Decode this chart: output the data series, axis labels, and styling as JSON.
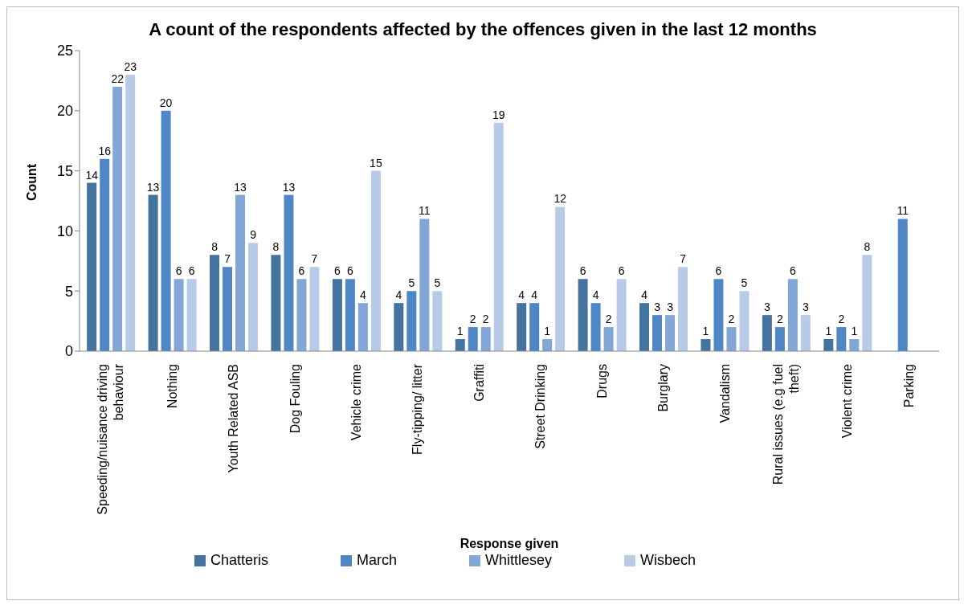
{
  "chart_data": {
    "type": "bar",
    "title": "A count of the respondents affected by the offences given in the last 12 months",
    "xlabel": "Response given",
    "ylabel": "Count",
    "categories": [
      "Speeding/nuisance driving behaviour",
      "Nothing",
      "Youth Related ASB",
      "Dog Fouling",
      "Vehicle crime",
      "Fly-tipping/ litter",
      "Graffiti",
      "Street Drinking",
      "Drugs",
      "Burglary",
      "Vandalism",
      "Rural issues (e.g fuel theft)",
      "Violent crime",
      "Parking"
    ],
    "series": [
      {
        "name": "Chatteris",
        "color": "#44739f",
        "values": [
          14,
          13,
          8,
          8,
          6,
          4,
          1,
          4,
          6,
          4,
          1,
          3,
          1,
          null
        ]
      },
      {
        "name": "March",
        "color": "#4f87c6",
        "values": [
          16,
          20,
          7,
          13,
          6,
          5,
          2,
          4,
          4,
          3,
          6,
          2,
          2,
          11
        ]
      },
      {
        "name": "Whittlesey",
        "color": "#82a6d6",
        "values": [
          22,
          6,
          13,
          6,
          4,
          11,
          2,
          1,
          2,
          3,
          2,
          6,
          1,
          null
        ]
      },
      {
        "name": "Wisbech",
        "color": "#b7cbe7",
        "values": [
          23,
          6,
          9,
          7,
          15,
          5,
          19,
          12,
          6,
          7,
          5,
          3,
          8,
          null
        ]
      }
    ],
    "ylim": [
      0,
      25
    ],
    "yticks": [
      0,
      5,
      10,
      15,
      20,
      25
    ],
    "grid": false,
    "legend": "bottom",
    "data_labels": true
  }
}
